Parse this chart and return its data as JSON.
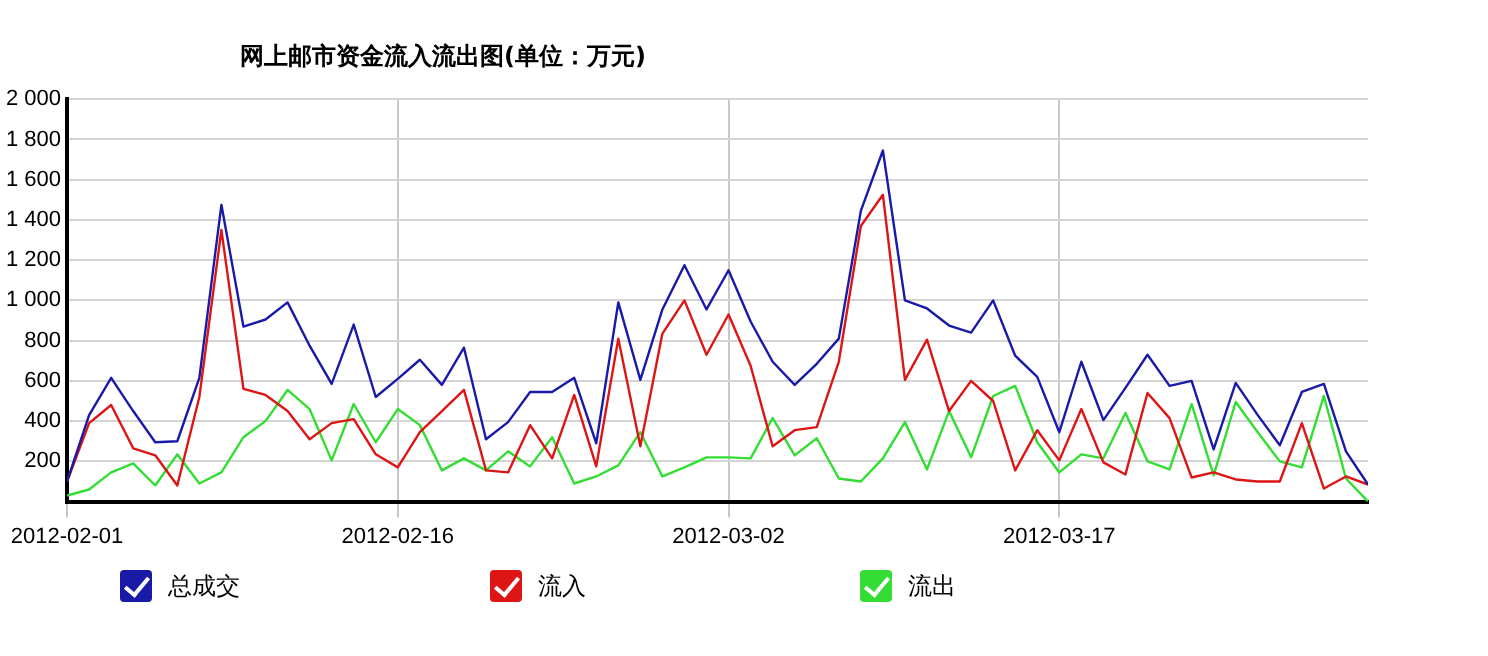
{
  "chart_data": {
    "type": "line",
    "title": "网上邮市资金流入流出图(单位：万元)",
    "x": [
      "2012-02-01",
      "2012-02-02",
      "2012-02-03",
      "2012-02-04",
      "2012-02-05",
      "2012-02-06",
      "2012-02-07",
      "2012-02-08",
      "2012-02-09",
      "2012-02-10",
      "2012-02-11",
      "2012-02-12",
      "2012-02-13",
      "2012-02-14",
      "2012-02-15",
      "2012-02-16",
      "2012-02-17",
      "2012-02-18",
      "2012-02-19",
      "2012-02-20",
      "2012-02-21",
      "2012-02-22",
      "2012-02-23",
      "2012-02-24",
      "2012-02-25",
      "2012-02-26",
      "2012-02-27",
      "2012-02-28",
      "2012-02-29",
      "2012-03-01",
      "2012-03-02",
      "2012-03-03",
      "2012-03-04",
      "2012-03-05",
      "2012-03-06",
      "2012-03-07",
      "2012-03-08",
      "2012-03-09",
      "2012-03-10",
      "2012-03-11",
      "2012-03-12",
      "2012-03-13",
      "2012-03-14",
      "2012-03-15",
      "2012-03-16",
      "2012-03-17",
      "2012-03-18",
      "2012-03-19",
      "2012-03-20",
      "2012-03-21",
      "2012-03-22",
      "2012-03-23",
      "2012-03-24",
      "2012-03-25",
      "2012-03-26",
      "2012-03-27",
      "2012-03-28",
      "2012-03-29",
      "2012-03-30",
      "2012-03-31"
    ],
    "series": [
      {
        "name": "总成交",
        "color": "#1a1aa8",
        "values": [
          100,
          430,
          615,
          450,
          295,
          300,
          615,
          1475,
          870,
          905,
          990,
          775,
          585,
          880,
          520,
          610,
          705,
          580,
          765,
          310,
          395,
          545,
          545,
          615,
          290,
          990,
          605,
          955,
          1175,
          955,
          1150,
          895,
          695,
          580,
          685,
          810,
          1445,
          1745,
          1000,
          960,
          875,
          840,
          1000,
          725,
          620,
          345,
          695,
          405,
          565,
          730,
          575,
          600,
          260,
          590,
          430,
          280,
          545,
          585,
          250,
          85
        ]
      },
      {
        "name": "流入",
        "color": "#dd1515",
        "values": [
          100,
          390,
          480,
          265,
          230,
          80,
          520,
          1350,
          560,
          530,
          450,
          310,
          390,
          410,
          235,
          170,
          345,
          450,
          555,
          155,
          145,
          380,
          215,
          530,
          175,
          810,
          275,
          835,
          1000,
          730,
          930,
          675,
          275,
          355,
          370,
          695,
          1370,
          1525,
          605,
          805,
          450,
          600,
          500,
          155,
          355,
          205,
          460,
          195,
          135,
          540,
          415,
          120,
          145,
          110,
          100,
          100,
          390,
          65,
          125,
          85
        ]
      },
      {
        "name": "流出",
        "color": "#33dd33",
        "values": [
          30,
          60,
          145,
          190,
          80,
          235,
          90,
          145,
          320,
          400,
          555,
          460,
          205,
          485,
          295,
          460,
          380,
          155,
          215,
          155,
          250,
          175,
          320,
          90,
          125,
          180,
          345,
          125,
          170,
          220,
          220,
          215,
          415,
          230,
          315,
          115,
          100,
          215,
          395,
          160,
          450,
          220,
          525,
          575,
          295,
          145,
          235,
          215,
          440,
          200,
          160,
          485,
          130,
          495,
          345,
          200,
          170,
          525,
          115,
          0
        ]
      }
    ],
    "xlim": [
      "2012-02-01",
      "2012-03-31"
    ],
    "xticks": [
      "2012-02-01",
      "2012-02-16",
      "2012-03-02",
      "2012-03-17"
    ],
    "ylim": [
      0,
      2000
    ],
    "yticks": [
      {
        "value": 0,
        "label": null
      },
      200,
      400,
      600,
      800,
      {
        "value": 1000,
        "label": "1 000"
      },
      {
        "value": 1200,
        "label": "1 200"
      },
      {
        "value": 1400,
        "label": "1 400"
      },
      {
        "value": 1600,
        "label": "1 600"
      },
      {
        "value": 1800,
        "label": "1 800"
      },
      {
        "value": 2000,
        "label": "2 000"
      }
    ],
    "grid": true,
    "legend": "bottom",
    "marker": "none",
    "line_style": "solid"
  }
}
